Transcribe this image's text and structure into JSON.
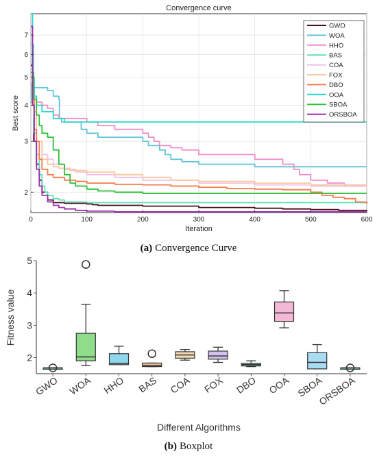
{
  "panel_a": {
    "caption_letter": "(a)",
    "caption_text": "Convergence Curve"
  },
  "panel_b": {
    "caption_letter": "(b)",
    "caption_text": "Boxplot"
  },
  "chart_data": [
    {
      "type": "line",
      "title": "Convergence curve",
      "xlabel": "Iteration",
      "ylabel": "Best score",
      "xlim": [
        0,
        600
      ],
      "ylim": [
        1.7,
        8.3
      ],
      "yscale": "log",
      "xticks": [
        0,
        100,
        200,
        300,
        400,
        500,
        600
      ],
      "yticks": [
        2,
        3,
        4,
        5,
        6,
        7
      ],
      "legend_position": "top-right",
      "series": [
        {
          "name": "GWO",
          "color": "#4a0f1c",
          "x": [
            0,
            5,
            10,
            15,
            20,
            30,
            40,
            60,
            80,
            100,
            110,
            120,
            200,
            300,
            400,
            450,
            500,
            550,
            600
          ],
          "y": [
            5.5,
            3.0,
            2.5,
            2.2,
            2.0,
            1.88,
            1.84,
            1.83,
            1.83,
            1.82,
            1.81,
            1.8,
            1.79,
            1.77,
            1.76,
            1.75,
            1.74,
            1.73,
            1.72
          ]
        },
        {
          "name": "WOA",
          "color": "#5fc5d9",
          "x": [
            0,
            2,
            4,
            6,
            10,
            20,
            30,
            40,
            50,
            51,
            55,
            60,
            80,
            90,
            100,
            120,
            150,
            180,
            200,
            210,
            230,
            240,
            250,
            270,
            300,
            350,
            400,
            500,
            600
          ],
          "y": [
            4.1,
            4.8,
            4.7,
            4.6,
            4.6,
            4.6,
            4.5,
            4.3,
            4.2,
            3.6,
            3.5,
            3.5,
            3.5,
            3.3,
            3.2,
            3.1,
            3.1,
            3.1,
            3.0,
            2.9,
            2.8,
            2.7,
            2.6,
            2.55,
            2.5,
            2.5,
            2.45,
            2.45,
            2.45
          ]
        },
        {
          "name": "HHO",
          "color": "#ee8ec8",
          "x": [
            0,
            3,
            6,
            10,
            20,
            30,
            40,
            50,
            80,
            100,
            120,
            150,
            180,
            200,
            210,
            220,
            230,
            250,
            270,
            300,
            350,
            400,
            430,
            450,
            470,
            480,
            500,
            530,
            560,
            600
          ],
          "y": [
            4.7,
            4.5,
            4.3,
            4.1,
            4.0,
            3.9,
            3.7,
            3.6,
            3.6,
            3.5,
            3.4,
            3.3,
            3.3,
            3.2,
            3.1,
            3.0,
            2.9,
            2.85,
            2.8,
            2.7,
            2.7,
            2.6,
            2.6,
            2.5,
            2.4,
            2.3,
            2.2,
            2.15,
            2.1,
            2.1
          ]
        },
        {
          "name": "BAS",
          "color": "#5ee0b8",
          "x": [
            0,
            5,
            10,
            15,
            20,
            25,
            30,
            40,
            50,
            60,
            80,
            100,
            150,
            200,
            300,
            400,
            500,
            600
          ],
          "y": [
            6.5,
            3.2,
            2.7,
            2.3,
            2.1,
            2.0,
            1.95,
            1.9,
            1.88,
            1.85,
            1.85,
            1.84,
            1.84,
            1.84,
            1.84,
            1.84,
            1.84,
            1.84
          ]
        },
        {
          "name": "COA",
          "color": "#f0c0e8",
          "x": [
            0,
            5,
            10,
            20,
            30,
            40,
            60,
            80,
            100,
            150,
            200,
            300,
            400,
            500,
            600
          ],
          "y": [
            4.8,
            3.6,
            3.0,
            2.7,
            2.6,
            2.5,
            2.4,
            2.35,
            2.3,
            2.25,
            2.2,
            2.15,
            2.12,
            2.1,
            2.08
          ]
        },
        {
          "name": "FOX",
          "color": "#f9c89e",
          "x": [
            0,
            5,
            10,
            20,
            30,
            40,
            50,
            70,
            100,
            150,
            200,
            250,
            300,
            400,
            500,
            600
          ],
          "y": [
            4.9,
            3.8,
            3.0,
            2.6,
            2.5,
            2.45,
            2.42,
            2.38,
            2.35,
            2.3,
            2.25,
            2.2,
            2.18,
            2.15,
            2.12,
            2.1
          ]
        },
        {
          "name": "DBO",
          "color": "#f37a4c",
          "x": [
            0,
            3,
            6,
            10,
            15,
            20,
            30,
            40,
            60,
            80,
            100,
            150,
            200,
            250,
            300,
            350,
            400,
            450,
            500,
            520,
            540,
            560,
            580,
            600
          ],
          "y": [
            5.0,
            4.6,
            3.3,
            3.0,
            2.6,
            2.4,
            2.3,
            2.25,
            2.2,
            2.18,
            2.15,
            2.13,
            2.12,
            2.1,
            2.08,
            2.06,
            2.05,
            2.04,
            2.0,
            1.95,
            1.92,
            1.9,
            1.85,
            1.82
          ]
        },
        {
          "name": "OOA",
          "color": "#27d8cc",
          "x": [
            0,
            3,
            6,
            10,
            20,
            40,
            60,
            100,
            200,
            300,
            400,
            500,
            600
          ],
          "y": [
            8.3,
            5.0,
            4.3,
            4.0,
            3.8,
            3.6,
            3.5,
            3.5,
            3.5,
            3.5,
            3.5,
            3.5,
            3.5
          ]
        },
        {
          "name": "SBOA",
          "color": "#2cbf35",
          "x": [
            0,
            5,
            10,
            15,
            20,
            30,
            40,
            50,
            60,
            70,
            80,
            100,
            120,
            150,
            200,
            300,
            400,
            500,
            600
          ],
          "y": [
            5.2,
            4.2,
            3.7,
            3.4,
            3.2,
            3.1,
            2.8,
            2.5,
            2.3,
            2.15,
            2.1,
            2.05,
            2.02,
            2.0,
            1.98,
            1.98,
            1.98,
            1.98,
            1.98
          ]
        },
        {
          "name": "ORSBOA",
          "color": "#9b30b0",
          "x": [
            0,
            3,
            6,
            10,
            15,
            20,
            30,
            40,
            50,
            60,
            80,
            100,
            150,
            200,
            300,
            600
          ],
          "y": [
            7.5,
            4.0,
            3.0,
            2.4,
            2.1,
            1.95,
            1.85,
            1.8,
            1.77,
            1.75,
            1.73,
            1.72,
            1.71,
            1.71,
            1.71,
            1.71
          ]
        }
      ]
    },
    {
      "type": "box",
      "xlabel": "Different Algorithms",
      "ylabel": "Fitness value",
      "ylim": [
        1.5,
        5.0
      ],
      "yticks": [
        2,
        3,
        4,
        5
      ],
      "categories": [
        "GWO",
        "WOA",
        "HHO",
        "BAS",
        "COA",
        "FOX",
        "DBO",
        "OOA",
        "SBOA",
        "ORSBOA"
      ],
      "boxes": [
        {
          "min": 1.68,
          "q1": 1.68,
          "median": 1.68,
          "q3": 1.68,
          "max": 1.68,
          "outliers": [
            1.68
          ],
          "color": "#7fc7b0"
        },
        {
          "min": 1.75,
          "q1": 1.9,
          "median": 2.02,
          "q3": 2.75,
          "max": 3.65,
          "outliers": [
            4.88
          ],
          "color": "#8fdc8a"
        },
        {
          "min": 1.78,
          "q1": 1.78,
          "median": 1.82,
          "q3": 2.12,
          "max": 2.35,
          "outliers": [],
          "color": "#8fd8ec"
        },
        {
          "min": 1.72,
          "q1": 1.72,
          "median": 1.76,
          "q3": 1.83,
          "max": 1.83,
          "outliers": [
            2.12
          ],
          "color": "#f2c29a"
        },
        {
          "min": 1.92,
          "q1": 1.98,
          "median": 2.08,
          "q3": 2.18,
          "max": 2.25,
          "outliers": [],
          "color": "#f3dcb4"
        },
        {
          "min": 1.85,
          "q1": 1.95,
          "median": 2.05,
          "q3": 2.2,
          "max": 2.32,
          "outliers": [],
          "color": "#d2c1ec"
        },
        {
          "min": 1.72,
          "q1": 1.74,
          "median": 1.78,
          "q3": 1.82,
          "max": 1.9,
          "outliers": [],
          "color": "#8fd8c0"
        },
        {
          "min": 2.92,
          "q1": 3.12,
          "median": 3.38,
          "q3": 3.72,
          "max": 4.07,
          "outliers": [],
          "color": "#f2b8d6"
        },
        {
          "min": 1.65,
          "q1": 1.65,
          "median": 1.85,
          "q3": 2.15,
          "max": 2.4,
          "outliers": [],
          "color": "#a8dcf2"
        },
        {
          "min": 1.68,
          "q1": 1.68,
          "median": 1.68,
          "q3": 1.68,
          "max": 1.68,
          "outliers": [
            1.68
          ],
          "color": "#7fc7b0"
        }
      ]
    }
  ]
}
